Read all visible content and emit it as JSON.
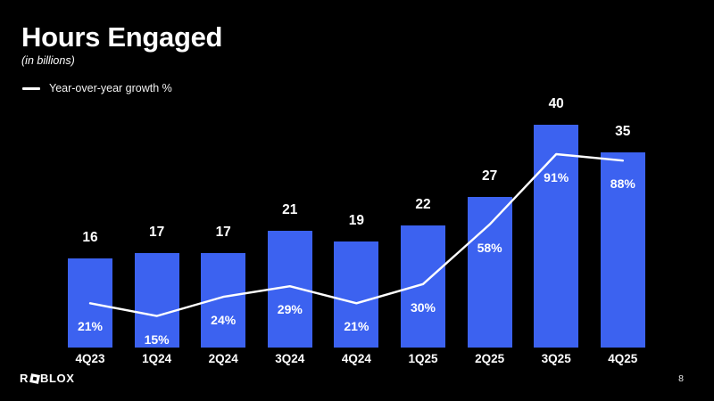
{
  "slide": {
    "title": "Hours Engaged",
    "subtitle": "(in billions)",
    "page_number": "8",
    "logo": {
      "r": "R",
      "blox": "BLOX"
    }
  },
  "legend": {
    "label": "Year-over-year growth %"
  },
  "colors": {
    "background": "#000000",
    "bar": "#3C62F0",
    "line": "#FFFFFF",
    "text": "#FFFFFF"
  },
  "chart_data": {
    "type": "bar",
    "title": "Hours Engaged (in billions)",
    "categories": [
      "4Q23",
      "1Q24",
      "2Q24",
      "3Q24",
      "4Q24",
      "1Q25",
      "2Q25",
      "3Q25",
      "4Q25"
    ],
    "series": [
      {
        "name": "Hours engaged (billions)",
        "type": "bar",
        "values": [
          16,
          17,
          17,
          21,
          19,
          22,
          27,
          40,
          35
        ]
      },
      {
        "name": "Year-over-year growth %",
        "type": "line",
        "values": [
          21,
          15,
          24,
          29,
          21,
          30,
          58,
          91,
          88
        ],
        "unit": "%"
      }
    ],
    "bar_value_labels": [
      "16",
      "17",
      "17",
      "21",
      "19",
      "22",
      "27",
      "40",
      "35"
    ],
    "line_value_labels": [
      "21%",
      "15%",
      "24%",
      "29%",
      "21%",
      "30%",
      "58%",
      "91%",
      "88%"
    ],
    "ylim_bars": [
      0,
      40
    ],
    "grid": false,
    "legend_position": "top-left"
  }
}
